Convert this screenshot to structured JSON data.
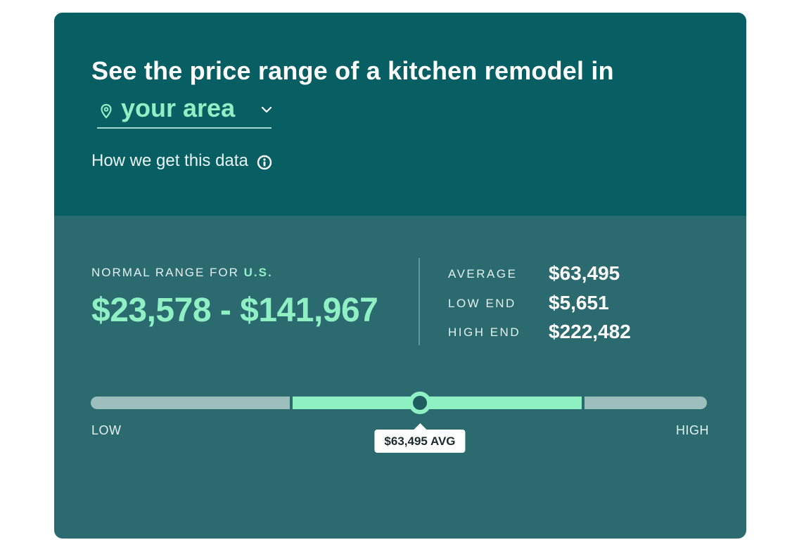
{
  "header": {
    "headline": "See the price range of a kitchen remodel in",
    "location_label": "your area",
    "data_link_label": "How we get this data"
  },
  "range": {
    "label_prefix": "NORMAL RANGE FOR",
    "location": "U.S.",
    "value": "$23,578 - $141,967"
  },
  "stats": [
    {
      "label": "AVERAGE",
      "value": "$63,495"
    },
    {
      "label": "LOW END",
      "value": "$5,651"
    },
    {
      "label": "HIGH END",
      "value": "$222,482"
    }
  ],
  "slider": {
    "low_label": "LOW",
    "high_label": "HIGH",
    "avg_label": "$63,495 AVG",
    "low_end": 5651,
    "normal_min": 23578,
    "normal_max": 141967,
    "average": 63495,
    "high_end": 222482
  },
  "colors": {
    "header_bg": "#075e63",
    "body_bg": "#2b6b70",
    "accent": "#8ff0c4",
    "track_inactive": "#9cbfbd"
  },
  "icons": {
    "location": "map-pin-icon",
    "dropdown": "chevron-down-icon",
    "info": "info-icon"
  }
}
